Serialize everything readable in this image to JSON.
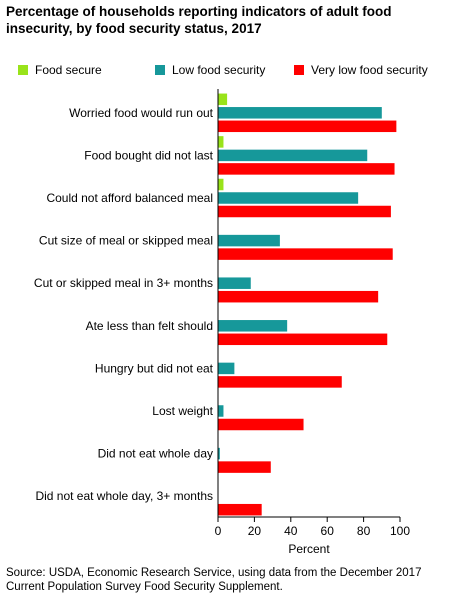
{
  "chart_data": {
    "type": "bar",
    "orientation": "horizontal",
    "title": "Percentage of households reporting indicators of adult food insecurity, by food security status, 2017",
    "xlabel": "Percent",
    "ylabel": "",
    "xlim": [
      0,
      100
    ],
    "xticks": [
      "0",
      "20",
      "40",
      "60",
      "80",
      "100"
    ],
    "grid": false,
    "legend_position": "top",
    "categories": [
      "Worried food would run out",
      "Food bought did not last",
      "Could not afford balanced meal",
      "Cut size of meal or skipped meal",
      "Cut or skipped meal in 3+ months",
      "Ate less than felt should",
      "Hungry but did not eat",
      "Lost weight",
      "Did not eat whole day",
      "Did not eat whole day, 3+ months"
    ],
    "series": [
      {
        "name": "Food secure",
        "color": "#99e31a",
        "values": [
          5,
          3,
          3,
          0,
          0,
          0,
          0,
          0,
          0,
          0
        ]
      },
      {
        "name": "Low food security",
        "color": "#16989a",
        "values": [
          90,
          82,
          77,
          34,
          18,
          38,
          9,
          3,
          1,
          0
        ]
      },
      {
        "name": "Very low food security",
        "color": "#ff0000",
        "values": [
          98,
          97,
          95,
          96,
          88,
          93,
          68,
          47,
          29,
          24
        ]
      }
    ]
  },
  "source": "Source: USDA, Economic Research Service, using data from the December 2017 Current Population Survey Food Security Supplement."
}
